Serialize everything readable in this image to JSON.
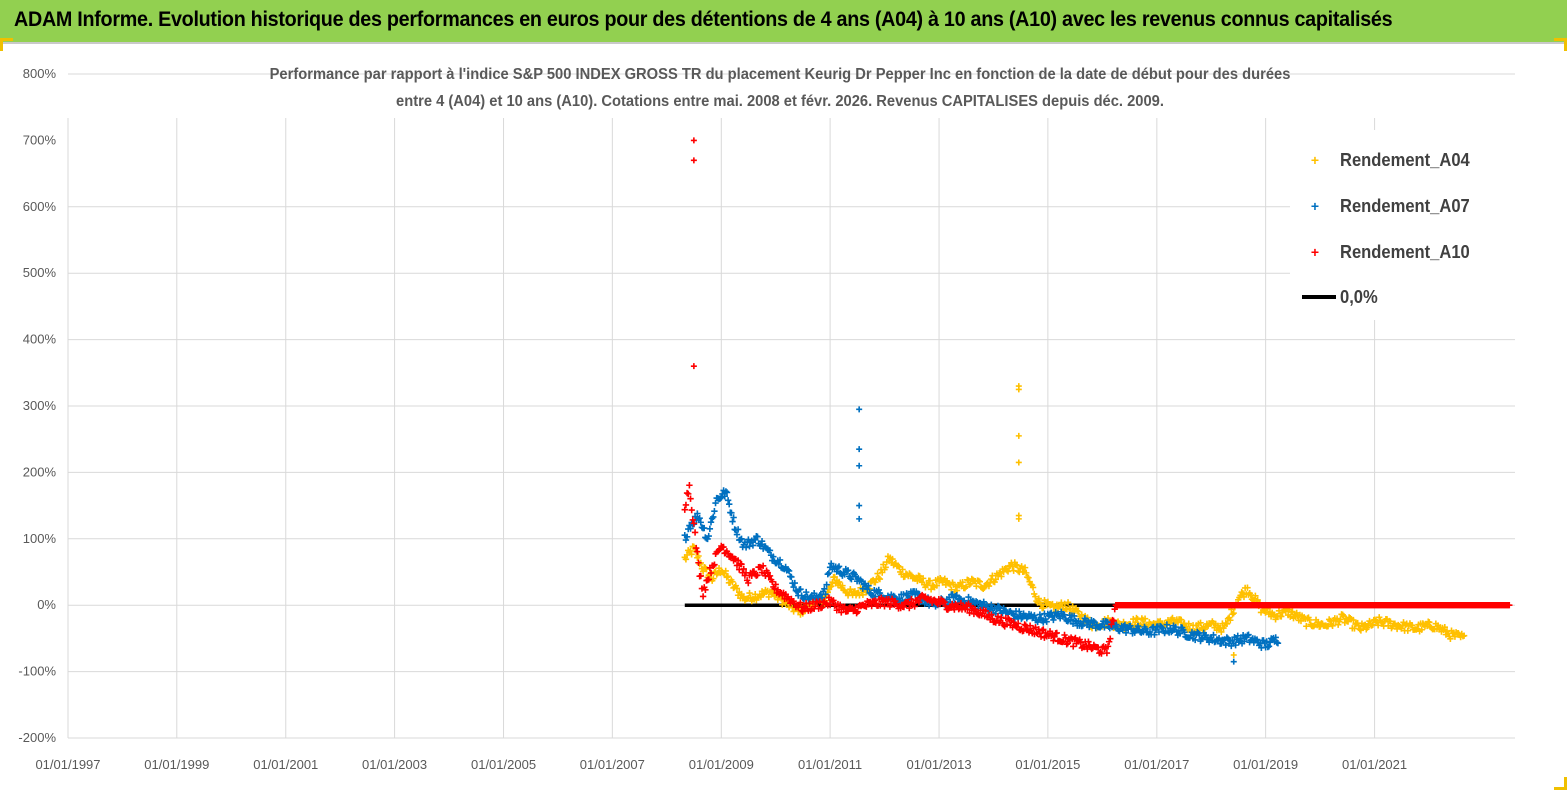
{
  "banner": {
    "title": "ADAM Informe. Evolution historique des performances en euros pour des détentions de 4 ans (A04) à 10 ans (A10) avec les revenus connus capitalisés"
  },
  "colors": {
    "banner_bg": "#92d050",
    "A04": "#ffc000",
    "A07": "#0070c0",
    "A10": "#ff0000",
    "zero": "#000000"
  },
  "chart_data": {
    "type": "scatter",
    "title_line1": "Performance par rapport à l'indice S&P 500 INDEX GROSS TR  du placement Keurig Dr Pepper Inc en fonction de la date de début pour des durées",
    "title_line2": "entre 4 (A04) et 10 ans (A10). Cotations entre mai. 2008 et févr. 2026. Revenus CAPITALISES depuis déc. 2009.",
    "ylim": [
      -200,
      800
    ],
    "y_unit": "%",
    "y_ticks": [
      "800%",
      "700%",
      "600%",
      "500%",
      "400%",
      "300%",
      "200%",
      "100%",
      "0%",
      "-100%",
      "-200%"
    ],
    "xlim": [
      "1997-01-01",
      "2023-08-01"
    ],
    "x_ticks": [
      "01/01/1997",
      "01/01/1999",
      "01/01/2001",
      "01/01/2003",
      "01/01/2005",
      "01/01/2007",
      "01/01/2009",
      "01/01/2011",
      "01/01/2013",
      "01/01/2015",
      "01/01/2017",
      "01/01/2019",
      "01/01/2021"
    ],
    "grid": true,
    "legend_position": "top-right",
    "legend": [
      "Rendement_A04",
      "Rendement_A07",
      "Rendement_A10",
      "0,0%"
    ],
    "series": [
      {
        "name": "Rendement_A04",
        "marker": "+",
        "points": [
          [
            "2008-05-01",
            70
          ],
          [
            "2008-07-01",
            85
          ],
          [
            "2008-09-01",
            55
          ],
          [
            "2008-11-01",
            40
          ],
          [
            "2009-01-01",
            55
          ],
          [
            "2009-03-01",
            35
          ],
          [
            "2009-06-01",
            10
          ],
          [
            "2009-09-01",
            15
          ],
          [
            "2009-12-01",
            20
          ],
          [
            "2010-03-01",
            5
          ],
          [
            "2010-06-01",
            -10
          ],
          [
            "2010-09-01",
            0
          ],
          [
            "2010-12-01",
            10
          ],
          [
            "2011-02-01",
            40
          ],
          [
            "2011-04-01",
            25
          ],
          [
            "2011-06-01",
            15
          ],
          [
            "2011-09-01",
            25
          ],
          [
            "2011-12-01",
            45
          ],
          [
            "2012-02-01",
            70
          ],
          [
            "2012-05-01",
            50
          ],
          [
            "2012-08-01",
            40
          ],
          [
            "2012-11-01",
            30
          ],
          [
            "2013-02-01",
            35
          ],
          [
            "2013-05-01",
            25
          ],
          [
            "2013-08-01",
            35
          ],
          [
            "2013-11-01",
            30
          ],
          [
            "2014-02-01",
            45
          ],
          [
            "2014-05-01",
            60
          ],
          [
            "2014-08-01",
            50
          ],
          [
            "2014-11-01",
            5
          ],
          [
            "2015-02-01",
            -5
          ],
          [
            "2015-05-01",
            0
          ],
          [
            "2015-08-01",
            -15
          ],
          [
            "2015-11-01",
            -30
          ],
          [
            "2016-02-01",
            -25
          ],
          [
            "2016-05-01",
            -30
          ],
          [
            "2016-09-01",
            -25
          ],
          [
            "2017-01-01",
            -30
          ],
          [
            "2017-05-01",
            -25
          ],
          [
            "2017-09-01",
            -35
          ],
          [
            "2018-01-01",
            -30
          ],
          [
            "2018-04-01",
            -35
          ],
          [
            "2018-07-01",
            10
          ],
          [
            "2018-09-01",
            25
          ],
          [
            "2018-12-01",
            -5
          ],
          [
            "2019-03-01",
            -15
          ],
          [
            "2019-06-01",
            -10
          ],
          [
            "2019-10-01",
            -25
          ],
          [
            "2020-02-01",
            -30
          ],
          [
            "2020-06-01",
            -20
          ],
          [
            "2020-10-01",
            -35
          ],
          [
            "2021-02-01",
            -25
          ],
          [
            "2021-06-01",
            -30
          ],
          [
            "2021-10-01",
            -35
          ],
          [
            "2022-02-01",
            -30
          ],
          [
            "2022-06-01",
            -45
          ],
          [
            "2022-09-01",
            -50
          ]
        ],
        "outliers": [
          [
            "2014-06-20",
            330
          ],
          [
            "2014-06-20",
            325
          ],
          [
            "2014-06-20",
            255
          ],
          [
            "2014-06-20",
            215
          ],
          [
            "2014-06-20",
            135
          ],
          [
            "2014-06-20",
            130
          ],
          [
            "2018-06-01",
            -75
          ]
        ]
      },
      {
        "name": "Rendement_A07",
        "marker": "+",
        "points": [
          [
            "2008-05-01",
            100
          ],
          [
            "2008-06-01",
            120
          ],
          [
            "2008-08-01",
            135
          ],
          [
            "2008-10-01",
            100
          ],
          [
            "2008-12-01",
            160
          ],
          [
            "2009-02-01",
            170
          ],
          [
            "2009-04-01",
            120
          ],
          [
            "2009-06-01",
            90
          ],
          [
            "2009-09-01",
            100
          ],
          [
            "2009-12-01",
            75
          ],
          [
            "2010-03-01",
            60
          ],
          [
            "2010-06-01",
            20
          ],
          [
            "2010-09-01",
            10
          ],
          [
            "2010-12-01",
            20
          ],
          [
            "2011-01-01",
            60
          ],
          [
            "2011-04-01",
            50
          ],
          [
            "2011-07-01",
            40
          ],
          [
            "2011-10-01",
            20
          ],
          [
            "2012-01-01",
            15
          ],
          [
            "2012-04-01",
            10
          ],
          [
            "2012-08-01",
            15
          ],
          [
            "2012-12-01",
            0
          ],
          [
            "2013-04-01",
            10
          ],
          [
            "2013-08-01",
            5
          ],
          [
            "2014-01-01",
            -5
          ],
          [
            "2014-06-01",
            -15
          ],
          [
            "2014-11-01",
            -20
          ],
          [
            "2015-04-01",
            -15
          ],
          [
            "2015-08-01",
            -25
          ],
          [
            "2016-01-01",
            -30
          ],
          [
            "2016-06-01",
            -35
          ],
          [
            "2016-11-01",
            -40
          ],
          [
            "2017-04-01",
            -35
          ],
          [
            "2017-09-01",
            -45
          ],
          [
            "2018-01-01",
            -50
          ],
          [
            "2018-05-01",
            -55
          ],
          [
            "2018-09-01",
            -50
          ],
          [
            "2019-01-01",
            -60
          ],
          [
            "2019-04-01",
            -50
          ]
        ],
        "outliers": [
          [
            "2011-07-15",
            295
          ],
          [
            "2011-07-15",
            235
          ],
          [
            "2011-07-15",
            210
          ],
          [
            "2011-07-15",
            150
          ],
          [
            "2011-07-15",
            130
          ],
          [
            "2018-06-01",
            -85
          ]
        ]
      },
      {
        "name": "Rendement_A10",
        "marker": "+",
        "points": [
          [
            "2008-05-01",
            150
          ],
          [
            "2008-06-01",
            180
          ],
          [
            "2008-08-01",
            60
          ],
          [
            "2008-09-01",
            20
          ],
          [
            "2008-11-01",
            60
          ],
          [
            "2009-01-01",
            90
          ],
          [
            "2009-04-01",
            70
          ],
          [
            "2009-07-01",
            40
          ],
          [
            "2009-10-01",
            55
          ],
          [
            "2010-01-01",
            25
          ],
          [
            "2010-04-01",
            10
          ],
          [
            "2010-07-01",
            -5
          ],
          [
            "2010-10-01",
            0
          ],
          [
            "2011-01-01",
            5
          ],
          [
            "2011-05-01",
            -10
          ],
          [
            "2011-09-01",
            0
          ],
          [
            "2012-01-01",
            5
          ],
          [
            "2012-06-01",
            0
          ],
          [
            "2012-10-01",
            10
          ],
          [
            "2013-03-01",
            0
          ],
          [
            "2013-08-01",
            -5
          ],
          [
            "2014-01-01",
            -20
          ],
          [
            "2014-06-01",
            -30
          ],
          [
            "2014-11-01",
            -40
          ],
          [
            "2015-04-01",
            -50
          ],
          [
            "2015-09-01",
            -60
          ],
          [
            "2016-02-01",
            -70
          ],
          [
            "2016-04-01",
            0
          ],
          [
            "2017-01-01",
            0
          ],
          [
            "2018-01-01",
            0
          ],
          [
            "2019-01-01",
            0
          ],
          [
            "2020-01-01",
            0
          ],
          [
            "2021-01-01",
            0
          ],
          [
            "2022-01-01",
            0
          ],
          [
            "2023-07-01",
            0
          ]
        ],
        "outliers": [
          [
            "2008-07-01",
            700
          ],
          [
            "2008-07-01",
            670
          ],
          [
            "2008-07-01",
            360
          ]
        ]
      },
      {
        "name": "0,0%",
        "type": "line",
        "points": [
          [
            "2008-05-01",
            0
          ],
          [
            "2016-04-01",
            0
          ]
        ]
      }
    ]
  }
}
